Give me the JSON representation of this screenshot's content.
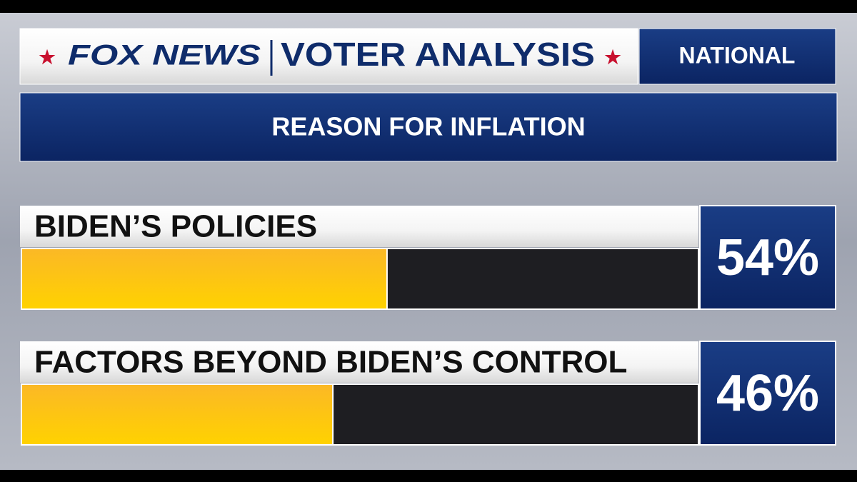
{
  "chart_data": {
    "type": "bar",
    "brand": "FOX NEWS",
    "title": "VOTER ANALYSIS",
    "region": "NATIONAL",
    "subtitle": "REASON FOR INFLATION",
    "categories": [
      "BIDEN’S POLICIES",
      "FACTORS BEYOND BIDEN’S CONTROL"
    ],
    "values": [
      54,
      46
    ],
    "value_labels": [
      "54%",
      "46%"
    ],
    "xlim": [
      0,
      100
    ],
    "color": "#fbb826"
  }
}
